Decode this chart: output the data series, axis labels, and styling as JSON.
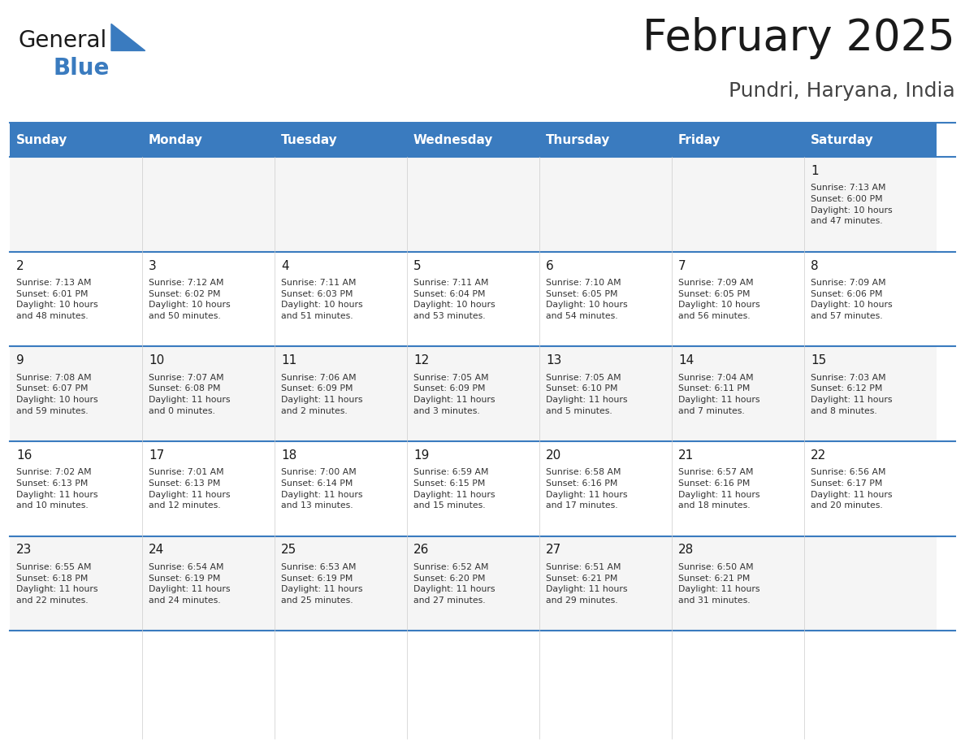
{
  "title": "February 2025",
  "subtitle": "Pundri, Haryana, India",
  "header_color": "#3A7BBF",
  "header_text_color": "#FFFFFF",
  "background_color": "#FFFFFF",
  "day_headers": [
    "Sunday",
    "Monday",
    "Tuesday",
    "Wednesday",
    "Thursday",
    "Friday",
    "Saturday"
  ],
  "weeks": [
    [
      {
        "day": null,
        "info": null
      },
      {
        "day": null,
        "info": null
      },
      {
        "day": null,
        "info": null
      },
      {
        "day": null,
        "info": null
      },
      {
        "day": null,
        "info": null
      },
      {
        "day": null,
        "info": null
      },
      {
        "day": 1,
        "info": "Sunrise: 7:13 AM\nSunset: 6:00 PM\nDaylight: 10 hours\nand 47 minutes."
      }
    ],
    [
      {
        "day": 2,
        "info": "Sunrise: 7:13 AM\nSunset: 6:01 PM\nDaylight: 10 hours\nand 48 minutes."
      },
      {
        "day": 3,
        "info": "Sunrise: 7:12 AM\nSunset: 6:02 PM\nDaylight: 10 hours\nand 50 minutes."
      },
      {
        "day": 4,
        "info": "Sunrise: 7:11 AM\nSunset: 6:03 PM\nDaylight: 10 hours\nand 51 minutes."
      },
      {
        "day": 5,
        "info": "Sunrise: 7:11 AM\nSunset: 6:04 PM\nDaylight: 10 hours\nand 53 minutes."
      },
      {
        "day": 6,
        "info": "Sunrise: 7:10 AM\nSunset: 6:05 PM\nDaylight: 10 hours\nand 54 minutes."
      },
      {
        "day": 7,
        "info": "Sunrise: 7:09 AM\nSunset: 6:05 PM\nDaylight: 10 hours\nand 56 minutes."
      },
      {
        "day": 8,
        "info": "Sunrise: 7:09 AM\nSunset: 6:06 PM\nDaylight: 10 hours\nand 57 minutes."
      }
    ],
    [
      {
        "day": 9,
        "info": "Sunrise: 7:08 AM\nSunset: 6:07 PM\nDaylight: 10 hours\nand 59 minutes."
      },
      {
        "day": 10,
        "info": "Sunrise: 7:07 AM\nSunset: 6:08 PM\nDaylight: 11 hours\nand 0 minutes."
      },
      {
        "day": 11,
        "info": "Sunrise: 7:06 AM\nSunset: 6:09 PM\nDaylight: 11 hours\nand 2 minutes."
      },
      {
        "day": 12,
        "info": "Sunrise: 7:05 AM\nSunset: 6:09 PM\nDaylight: 11 hours\nand 3 minutes."
      },
      {
        "day": 13,
        "info": "Sunrise: 7:05 AM\nSunset: 6:10 PM\nDaylight: 11 hours\nand 5 minutes."
      },
      {
        "day": 14,
        "info": "Sunrise: 7:04 AM\nSunset: 6:11 PM\nDaylight: 11 hours\nand 7 minutes."
      },
      {
        "day": 15,
        "info": "Sunrise: 7:03 AM\nSunset: 6:12 PM\nDaylight: 11 hours\nand 8 minutes."
      }
    ],
    [
      {
        "day": 16,
        "info": "Sunrise: 7:02 AM\nSunset: 6:13 PM\nDaylight: 11 hours\nand 10 minutes."
      },
      {
        "day": 17,
        "info": "Sunrise: 7:01 AM\nSunset: 6:13 PM\nDaylight: 11 hours\nand 12 minutes."
      },
      {
        "day": 18,
        "info": "Sunrise: 7:00 AM\nSunset: 6:14 PM\nDaylight: 11 hours\nand 13 minutes."
      },
      {
        "day": 19,
        "info": "Sunrise: 6:59 AM\nSunset: 6:15 PM\nDaylight: 11 hours\nand 15 minutes."
      },
      {
        "day": 20,
        "info": "Sunrise: 6:58 AM\nSunset: 6:16 PM\nDaylight: 11 hours\nand 17 minutes."
      },
      {
        "day": 21,
        "info": "Sunrise: 6:57 AM\nSunset: 6:16 PM\nDaylight: 11 hours\nand 18 minutes."
      },
      {
        "day": 22,
        "info": "Sunrise: 6:56 AM\nSunset: 6:17 PM\nDaylight: 11 hours\nand 20 minutes."
      }
    ],
    [
      {
        "day": 23,
        "info": "Sunrise: 6:55 AM\nSunset: 6:18 PM\nDaylight: 11 hours\nand 22 minutes."
      },
      {
        "day": 24,
        "info": "Sunrise: 6:54 AM\nSunset: 6:19 PM\nDaylight: 11 hours\nand 24 minutes."
      },
      {
        "day": 25,
        "info": "Sunrise: 6:53 AM\nSunset: 6:19 PM\nDaylight: 11 hours\nand 25 minutes."
      },
      {
        "day": 26,
        "info": "Sunrise: 6:52 AM\nSunset: 6:20 PM\nDaylight: 11 hours\nand 27 minutes."
      },
      {
        "day": 27,
        "info": "Sunrise: 6:51 AM\nSunset: 6:21 PM\nDaylight: 11 hours\nand 29 minutes."
      },
      {
        "day": 28,
        "info": "Sunrise: 6:50 AM\nSunset: 6:21 PM\nDaylight: 11 hours\nand 31 minutes."
      },
      {
        "day": null,
        "info": null
      }
    ]
  ],
  "line_color": "#3A7BBF",
  "cell_bg_even": "#F5F5F5",
  "cell_bg_odd": "#FFFFFF",
  "day_num_color": "#1a1a1a",
  "info_text_color": "#333333",
  "logo_general_color": "#1a1a1a",
  "logo_blue_color": "#3A7BBF",
  "logo_triangle_color": "#3A7BBF"
}
